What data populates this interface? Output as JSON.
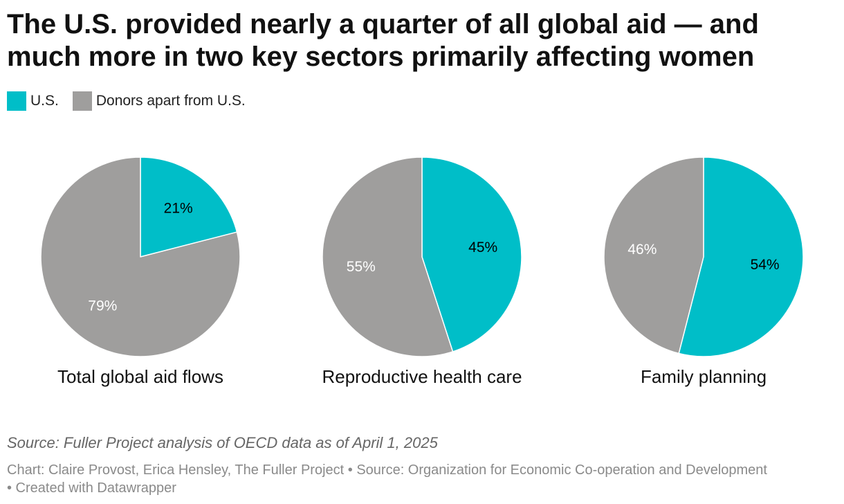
{
  "header": {
    "title": "The U.S. provided nearly a quarter of all global aid — and much more in two key sectors primarily affecting women"
  },
  "legend": {
    "items": [
      {
        "label": "U.S.",
        "color": "#00bec8"
      },
      {
        "label": "Donors apart from U.S.",
        "color": "#9f9e9d"
      }
    ]
  },
  "chart_data": [
    {
      "type": "pie",
      "title": "Total global aid flows",
      "slices": [
        {
          "name": "U.S.",
          "value": 21,
          "label": "21%",
          "color": "#00bec8",
          "label_color": "#000000"
        },
        {
          "name": "Donors apart from U.S.",
          "value": 79,
          "label": "79%",
          "color": "#9f9e9d",
          "label_color": "#ffffff"
        }
      ]
    },
    {
      "type": "pie",
      "title": "Reproductive health care",
      "slices": [
        {
          "name": "U.S.",
          "value": 45,
          "label": "45%",
          "color": "#00bec8",
          "label_color": "#000000"
        },
        {
          "name": "Donors apart from U.S.",
          "value": 55,
          "label": "55%",
          "color": "#9f9e9d",
          "label_color": "#ffffff"
        }
      ]
    },
    {
      "type": "pie",
      "title": "Family planning",
      "slices": [
        {
          "name": "U.S.",
          "value": 54,
          "label": "54%",
          "color": "#00bec8",
          "label_color": "#000000"
        },
        {
          "name": "Donors apart from U.S.",
          "value": 46,
          "label": "46%",
          "color": "#9f9e9d",
          "label_color": "#ffffff"
        }
      ]
    }
  ],
  "footer": {
    "source": "Source: Fuller Project analysis of OECD data as of April 1, 2025",
    "credits": "Chart: Claire Provost, Erica Hensley, The Fuller Project • Source: Organization for Economic Co-operation and Development • Created with Datawrapper"
  }
}
